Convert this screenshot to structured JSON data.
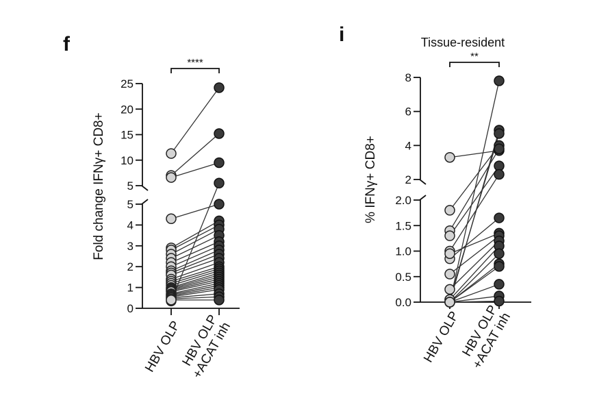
{
  "chart_data": [
    {
      "type": "scatter",
      "panel": "f",
      "title": "",
      "ylabel": "Fold change IFNγ+ CD8+",
      "categories": [
        "HBV OLP",
        "HBV OLP\n+ACAT inh"
      ],
      "category_lines": [
        [
          "HBV OLP"
        ],
        [
          "HBV OLP",
          "+ACAT inh"
        ]
      ],
      "y_segments": [
        {
          "range": [
            0,
            5
          ],
          "ticks": [
            0,
            1,
            2,
            3,
            4,
            5
          ]
        },
        {
          "range": [
            5,
            25
          ],
          "ticks": [
            5,
            10,
            15,
            20,
            25
          ]
        }
      ],
      "significance": "****",
      "pairs": [
        [
          11.3,
          24.2
        ],
        [
          7.0,
          15.2
        ],
        [
          6.6,
          9.5
        ],
        [
          0.35,
          5.5
        ],
        [
          4.3,
          5.0
        ],
        [
          2.9,
          4.2
        ],
        [
          2.8,
          4.0
        ],
        [
          2.6,
          3.8
        ],
        [
          2.4,
          3.5
        ],
        [
          2.2,
          3.2
        ],
        [
          2.0,
          3.0
        ],
        [
          1.8,
          2.8
        ],
        [
          1.7,
          2.6
        ],
        [
          1.6,
          2.4
        ],
        [
          1.4,
          2.2
        ],
        [
          1.3,
          2.0
        ],
        [
          1.2,
          1.9
        ],
        [
          1.1,
          1.8
        ],
        [
          1.0,
          1.7
        ],
        [
          0.95,
          1.6
        ],
        [
          0.9,
          1.5
        ],
        [
          0.85,
          1.4
        ],
        [
          0.8,
          1.3
        ],
        [
          0.7,
          1.2
        ],
        [
          0.65,
          1.1
        ],
        [
          0.6,
          1.0
        ],
        [
          0.55,
          0.9
        ],
        [
          0.5,
          0.7
        ],
        [
          0.45,
          0.55
        ],
        [
          0.4,
          0.4
        ]
      ]
    },
    {
      "type": "scatter",
      "panel": "i",
      "title": "Tissue-resident",
      "ylabel": "% IFNγ+ CD8+",
      "categories": [
        "HBV OLP",
        "HBV OLP\n+ACAT inh"
      ],
      "category_lines": [
        [
          "HBV OLP"
        ],
        [
          "HBV OLP",
          "+ACAT inh"
        ]
      ],
      "y_segments": [
        {
          "range": [
            0,
            2
          ],
          "ticks": [
            "0.0",
            "0.5",
            "1.0",
            "1.5",
            "2.0"
          ]
        },
        {
          "range": [
            2,
            8
          ],
          "ticks": [
            2,
            4,
            6,
            8
          ]
        }
      ],
      "significance": "**",
      "pairs": [
        [
          3.3,
          3.7
        ],
        [
          0.0,
          7.8
        ],
        [
          0.0,
          4.9
        ],
        [
          0.05,
          4.7
        ],
        [
          1.8,
          4.0
        ],
        [
          1.4,
          3.8
        ],
        [
          1.3,
          2.8
        ],
        [
          1.0,
          2.3
        ],
        [
          0.85,
          1.65
        ],
        [
          0.95,
          1.35
        ],
        [
          0.55,
          1.3
        ],
        [
          0.25,
          1.2
        ],
        [
          0.05,
          1.1
        ],
        [
          0.0,
          0.95
        ],
        [
          0.0,
          0.75
        ],
        [
          0.0,
          0.7
        ],
        [
          0.0,
          0.35
        ],
        [
          0.0,
          0.12
        ],
        [
          0.0,
          0.02
        ]
      ]
    }
  ]
}
